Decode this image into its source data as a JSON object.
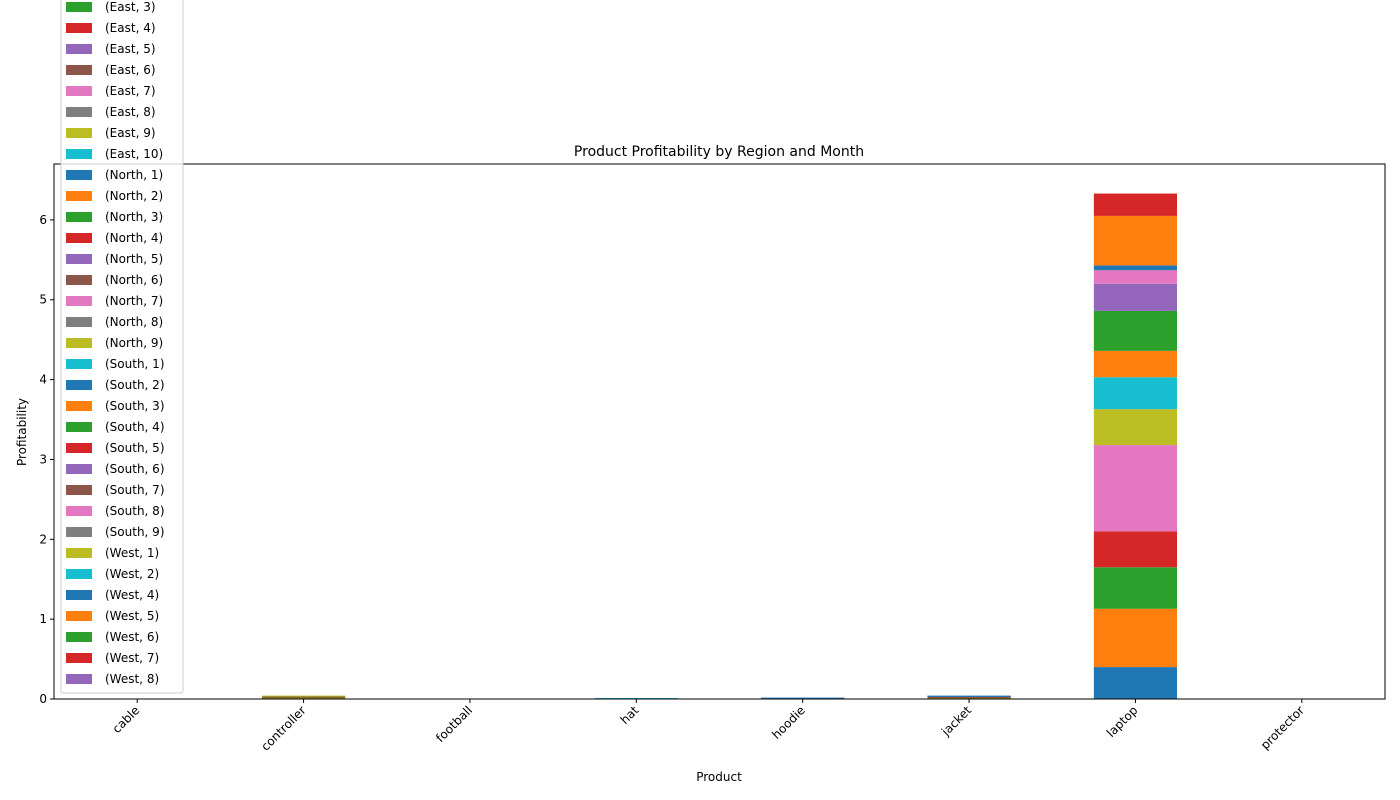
{
  "chart_data": {
    "type": "bar",
    "stacked": true,
    "title": "Product Profitability by Region and Month",
    "xlabel": "Product",
    "ylabel": "Profitability",
    "categories": [
      "cable",
      "controller",
      "football",
      "hat",
      "hoodie",
      "jacket",
      "laptop",
      "protector"
    ],
    "ylim": [
      0,
      6.7
    ],
    "yticks": [
      0,
      1,
      2,
      3,
      4,
      5,
      6
    ],
    "grid": false,
    "legend_position": "top-left",
    "series": [
      {
        "name": "(East, 3)",
        "color": "#2ca02c",
        "values": [
          0,
          0,
          0,
          0,
          0,
          0,
          0,
          0
        ]
      },
      {
        "name": "(East, 4)",
        "color": "#d62728",
        "values": [
          0,
          0,
          0,
          0,
          0,
          0,
          0,
          0
        ]
      },
      {
        "name": "(East, 5)",
        "color": "#9467bd",
        "values": [
          0,
          0,
          0,
          0,
          0,
          0,
          0,
          0
        ]
      },
      {
        "name": "(East, 6)",
        "color": "#8c564b",
        "values": [
          0,
          0,
          0,
          0,
          0,
          0,
          0,
          0
        ]
      },
      {
        "name": "(East, 7)",
        "color": "#e377c2",
        "values": [
          0,
          0,
          0,
          0,
          0,
          0,
          0,
          0
        ]
      },
      {
        "name": "(East, 8)",
        "color": "#7f7f7f",
        "values": [
          0,
          0,
          0,
          0,
          0,
          0,
          0,
          0
        ]
      },
      {
        "name": "(East, 9)",
        "color": "#bcbd22",
        "values": [
          0,
          0,
          0,
          0,
          0,
          0,
          0,
          0
        ]
      },
      {
        "name": "(East, 10)",
        "color": "#17becf",
        "values": [
          0,
          0,
          0,
          0,
          0,
          0,
          0,
          0
        ]
      },
      {
        "name": "(North, 1)",
        "color": "#1f77b4",
        "values": [
          0,
          0,
          0,
          0,
          0,
          0,
          0.4,
          0
        ]
      },
      {
        "name": "(North, 2)",
        "color": "#ff7f0e",
        "values": [
          0,
          0.01,
          0,
          0,
          0,
          0.01,
          0.73,
          0
        ]
      },
      {
        "name": "(North, 3)",
        "color": "#2ca02c",
        "values": [
          0,
          0.01,
          0,
          0,
          0,
          0.005,
          0.52,
          0
        ]
      },
      {
        "name": "(North, 4)",
        "color": "#d62728",
        "values": [
          0,
          0.005,
          0,
          0,
          0,
          0.005,
          0.45,
          0
        ]
      },
      {
        "name": "(North, 5)",
        "color": "#9467bd",
        "values": [
          0,
          0,
          0,
          0,
          0,
          0,
          0,
          0
        ]
      },
      {
        "name": "(North, 6)",
        "color": "#8c564b",
        "values": [
          0,
          0.005,
          0,
          0,
          0,
          0.005,
          0,
          0
        ]
      },
      {
        "name": "(North, 7)",
        "color": "#e377c2",
        "values": [
          0,
          0,
          0,
          0,
          0,
          0,
          1.08,
          0
        ]
      },
      {
        "name": "(North, 8)",
        "color": "#7f7f7f",
        "values": [
          0,
          0,
          0,
          0,
          0,
          0,
          0,
          0
        ]
      },
      {
        "name": "(North, 9)",
        "color": "#bcbd22",
        "values": [
          0,
          0.005,
          0,
          0,
          0,
          0,
          0.45,
          0
        ]
      },
      {
        "name": "(South, 1)",
        "color": "#17becf",
        "values": [
          0,
          0,
          0,
          0.005,
          0,
          0,
          0.4,
          0
        ]
      },
      {
        "name": "(South, 2)",
        "color": "#1f77b4",
        "values": [
          0,
          0,
          0,
          0,
          0.005,
          0.005,
          0,
          0
        ]
      },
      {
        "name": "(South, 3)",
        "color": "#ff7f0e",
        "values": [
          0,
          0,
          0,
          0,
          0,
          0,
          0.33,
          0
        ]
      },
      {
        "name": "(South, 4)",
        "color": "#2ca02c",
        "values": [
          0,
          0,
          0,
          0,
          0,
          0,
          0.5,
          0
        ]
      },
      {
        "name": "(South, 5)",
        "color": "#d62728",
        "values": [
          0,
          0,
          0,
          0,
          0,
          0,
          0,
          0
        ]
      },
      {
        "name": "(South, 6)",
        "color": "#9467bd",
        "values": [
          0,
          0,
          0,
          0,
          0,
          0,
          0.34,
          0
        ]
      },
      {
        "name": "(South, 7)",
        "color": "#8c564b",
        "values": [
          0,
          0,
          0,
          0,
          0,
          0,
          0,
          0
        ]
      },
      {
        "name": "(South, 8)",
        "color": "#e377c2",
        "values": [
          0,
          0,
          0,
          0,
          0,
          0,
          0.17,
          0
        ]
      },
      {
        "name": "(South, 9)",
        "color": "#7f7f7f",
        "values": [
          0,
          0,
          0,
          0,
          0,
          0,
          0,
          0
        ]
      },
      {
        "name": "(West, 1)",
        "color": "#bcbd22",
        "values": [
          0,
          0,
          0,
          0,
          0,
          0,
          0,
          0
        ]
      },
      {
        "name": "(West, 2)",
        "color": "#17becf",
        "values": [
          0,
          0,
          0,
          0,
          0,
          0,
          0,
          0
        ]
      },
      {
        "name": "(West, 4)",
        "color": "#1f77b4",
        "values": [
          0,
          0,
          0,
          0,
          0.005,
          0.005,
          0.06,
          0
        ]
      },
      {
        "name": "(West, 5)",
        "color": "#ff7f0e",
        "values": [
          0,
          0,
          0,
          0,
          0,
          0,
          0.62,
          0
        ]
      },
      {
        "name": "(West, 6)",
        "color": "#2ca02c",
        "values": [
          0,
          0,
          0,
          0,
          0,
          0,
          0,
          0
        ]
      },
      {
        "name": "(West, 7)",
        "color": "#d62728",
        "values": [
          0,
          0,
          0,
          0,
          0,
          0,
          0.28,
          0
        ]
      },
      {
        "name": "(West, 8)",
        "color": "#9467bd",
        "values": [
          0,
          0,
          0,
          0,
          0,
          0,
          0,
          0
        ]
      }
    ]
  }
}
